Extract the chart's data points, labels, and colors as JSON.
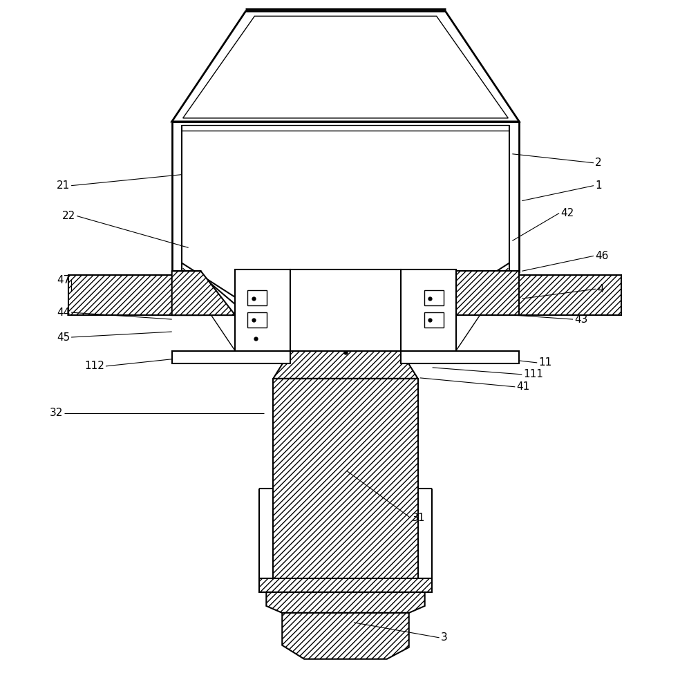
{
  "bg_color": "#ffffff",
  "lc": "#000000",
  "figsize": [
    9.97,
    10.0
  ],
  "dpi": 100,
  "lw_thick": 2.0,
  "lw_med": 1.5,
  "lw_thin": 1.0,
  "lw_vt": 0.5,
  "labels_right": [
    [
      "2",
      862,
      235,
      742,
      222
    ],
    [
      "1",
      862,
      268,
      756,
      290
    ],
    [
      "42",
      812,
      308,
      742,
      348
    ],
    [
      "46",
      862,
      370,
      756,
      392
    ],
    [
      "4",
      865,
      418,
      756,
      432
    ],
    [
      "43",
      832,
      462,
      716,
      454
    ],
    [
      "11",
      780,
      525,
      665,
      512
    ],
    [
      "111",
      758,
      542,
      626,
      532
    ],
    [
      "41",
      748,
      560,
      608,
      547
    ]
  ],
  "labels_left": [
    [
      "21",
      100,
      268,
      262,
      252
    ],
    [
      "22",
      108,
      312,
      272,
      358
    ],
    [
      "47",
      100,
      405,
      102,
      422
    ],
    [
      "44",
      100,
      452,
      248,
      462
    ],
    [
      "45",
      100,
      488,
      248,
      480
    ],
    [
      "112",
      150,
      530,
      340,
      510
    ],
    [
      "32",
      90,
      598,
      382,
      598
    ]
  ],
  "labels_center": [
    [
      "31",
      596,
      750,
      502,
      682
    ],
    [
      "3",
      638,
      924,
      512,
      902
    ]
  ]
}
